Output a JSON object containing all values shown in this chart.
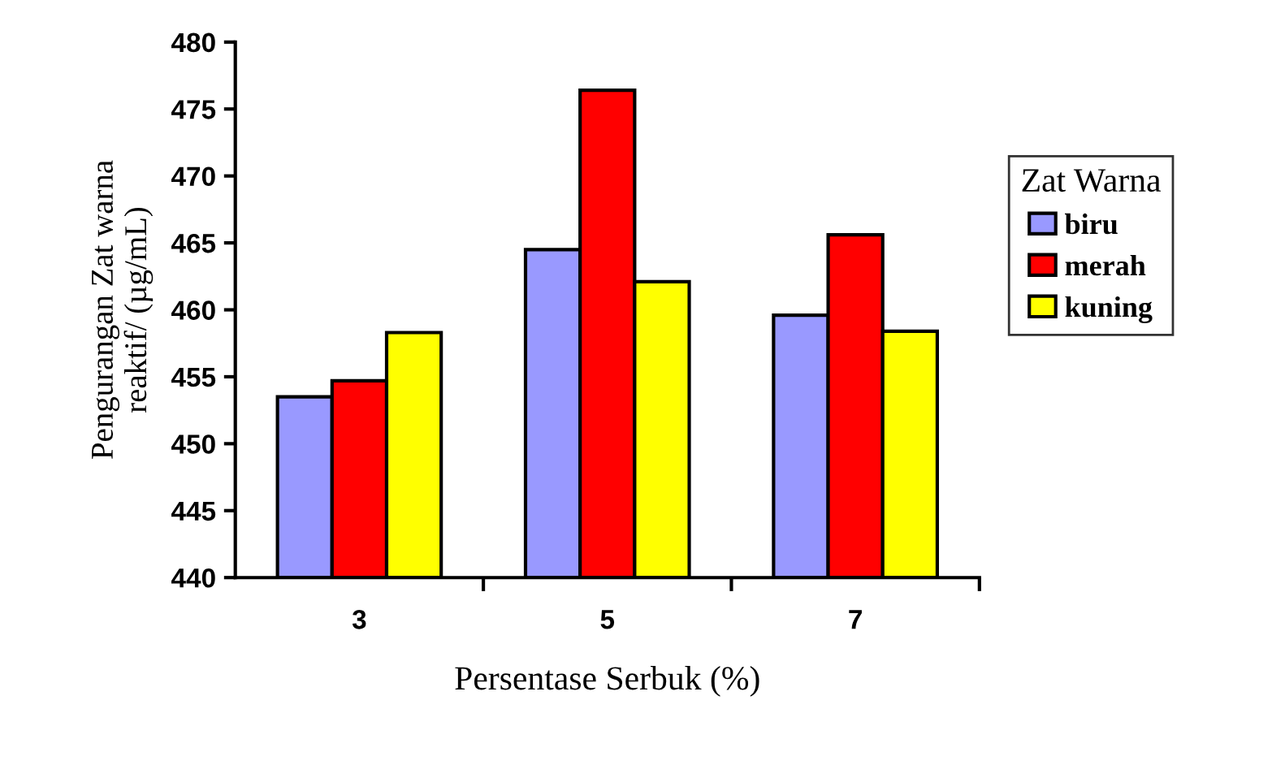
{
  "chart_data": {
    "type": "bar",
    "xlabel": "Persentase Serbuk (%)",
    "ylabel": "Pengurangan Zat warna\nreaktif/ (µg/mL)",
    "legend_title": "Zat Warna",
    "legend": "right",
    "categories": [
      "3",
      "5",
      "7"
    ],
    "series": [
      {
        "name": "biru",
        "color": "#9999ff",
        "values": [
          453.5,
          464.5,
          459.6
        ]
      },
      {
        "name": "merah",
        "color": "#ff0000",
        "values": [
          454.7,
          476.4,
          465.6
        ]
      },
      {
        "name": "kuning",
        "color": "#ffff00",
        "values": [
          458.3,
          462.1,
          458.4
        ]
      }
    ],
    "ylim": [
      440,
      480
    ],
    "yticks": [
      440,
      445,
      450,
      455,
      460,
      465,
      470,
      475,
      480
    ],
    "grid": false
  }
}
